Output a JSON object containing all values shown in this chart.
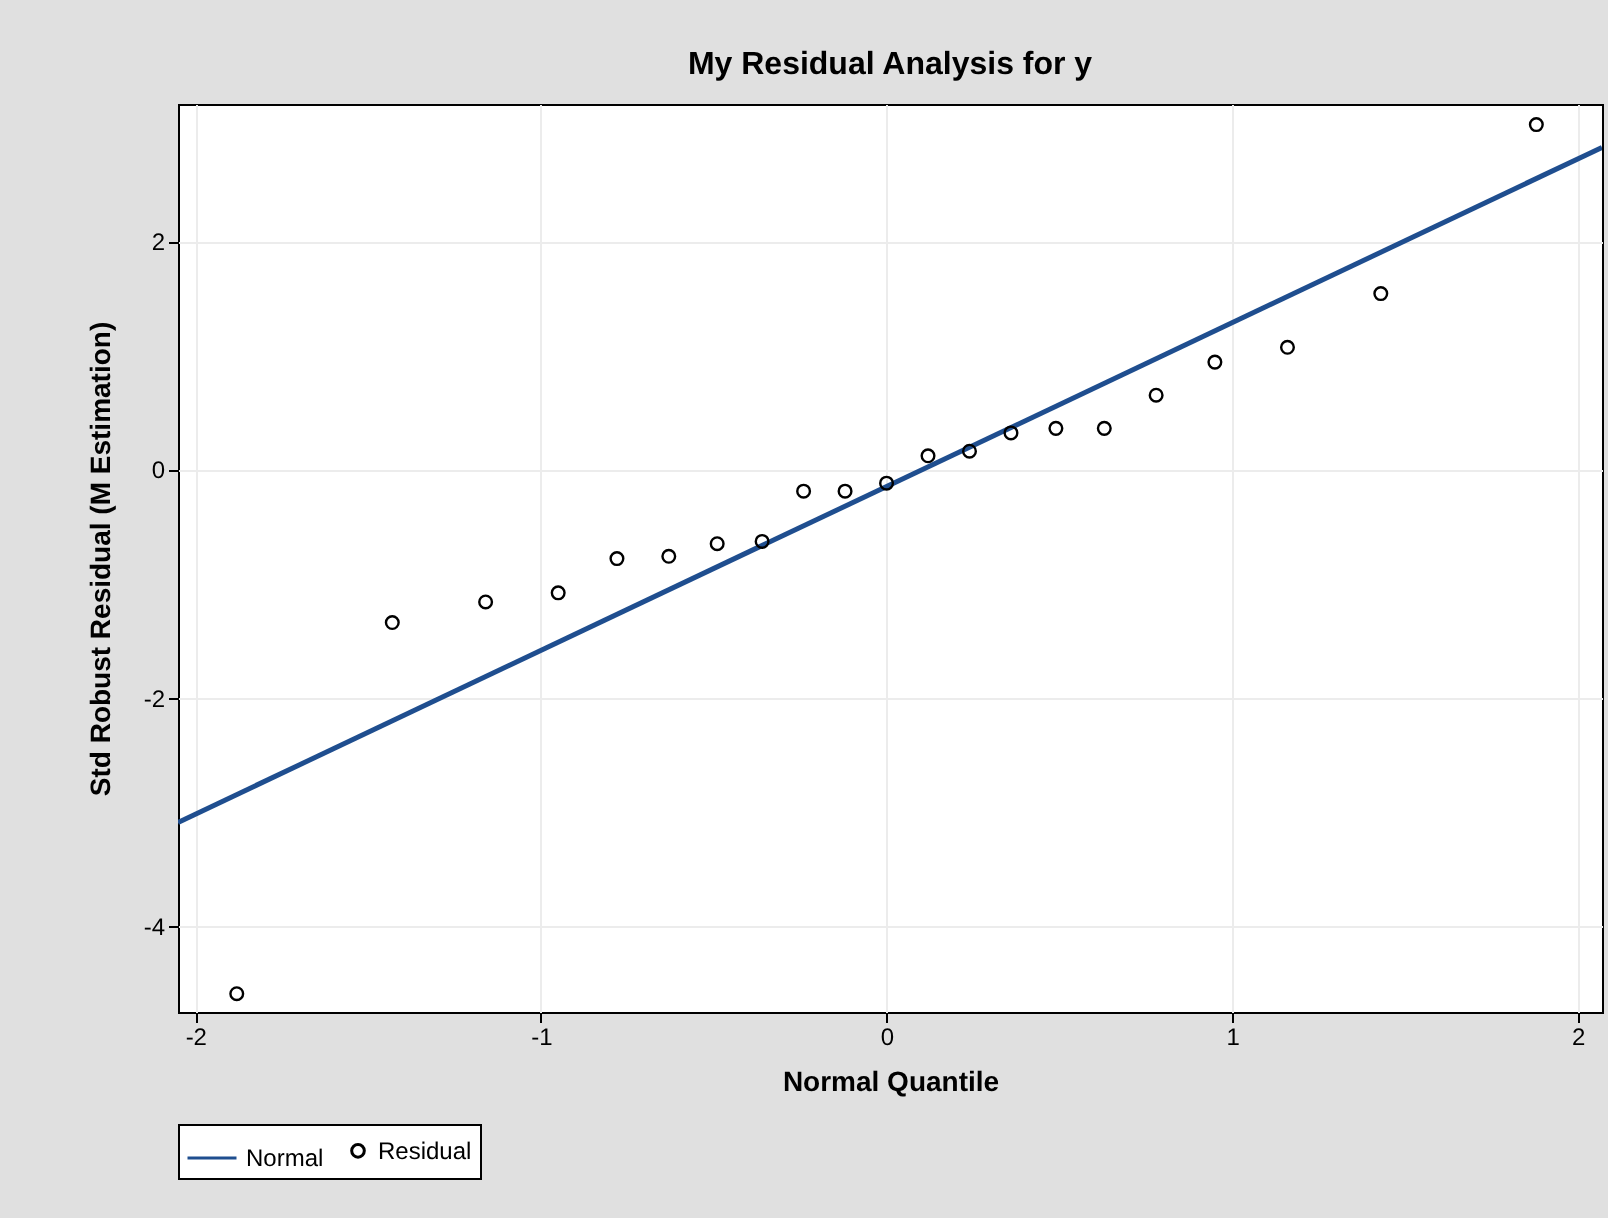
{
  "chart_data": {
    "type": "scatter",
    "title": "My Residual Analysis for y",
    "xlabel": "Normal Quantile",
    "ylabel": "Std Robust Residual (M Estimation)",
    "xlim": [
      -2.05,
      2.07
    ],
    "xticks": [
      -2,
      -1,
      0,
      1,
      2
    ],
    "ylim": [
      -4.75,
      3.2
    ],
    "yticks": [
      -4,
      -2,
      0,
      2
    ],
    "grid": true,
    "legend": "bottom",
    "marker": "circle",
    "line_style": "solid",
    "series": [
      {
        "name": "Normal",
        "type": "line",
        "marker": "none",
        "color": "#1f4e8f",
        "x": [
          -2.05,
          2.07
        ],
        "values": [
          -3.09,
          2.82
        ]
      },
      {
        "name": "Residual",
        "color": "#000000",
        "x": [
          -1.88,
          -1.43,
          -1.16,
          -0.95,
          -0.78,
          -0.63,
          -0.49,
          -0.36,
          -0.24,
          -0.12,
          0,
          0.12,
          0.24,
          0.36,
          0.49,
          0.63,
          0.78,
          0.95,
          1.16,
          1.43,
          1.88
        ],
        "values": [
          -4.59,
          -1.34,
          -1.16,
          -1.08,
          -0.78,
          -0.76,
          -0.65,
          -0.63,
          -0.19,
          -0.19,
          -0.12,
          0.12,
          0.16,
          0.32,
          0.36,
          0.36,
          0.65,
          0.94,
          1.07,
          1.54,
          3.02
        ]
      }
    ]
  }
}
